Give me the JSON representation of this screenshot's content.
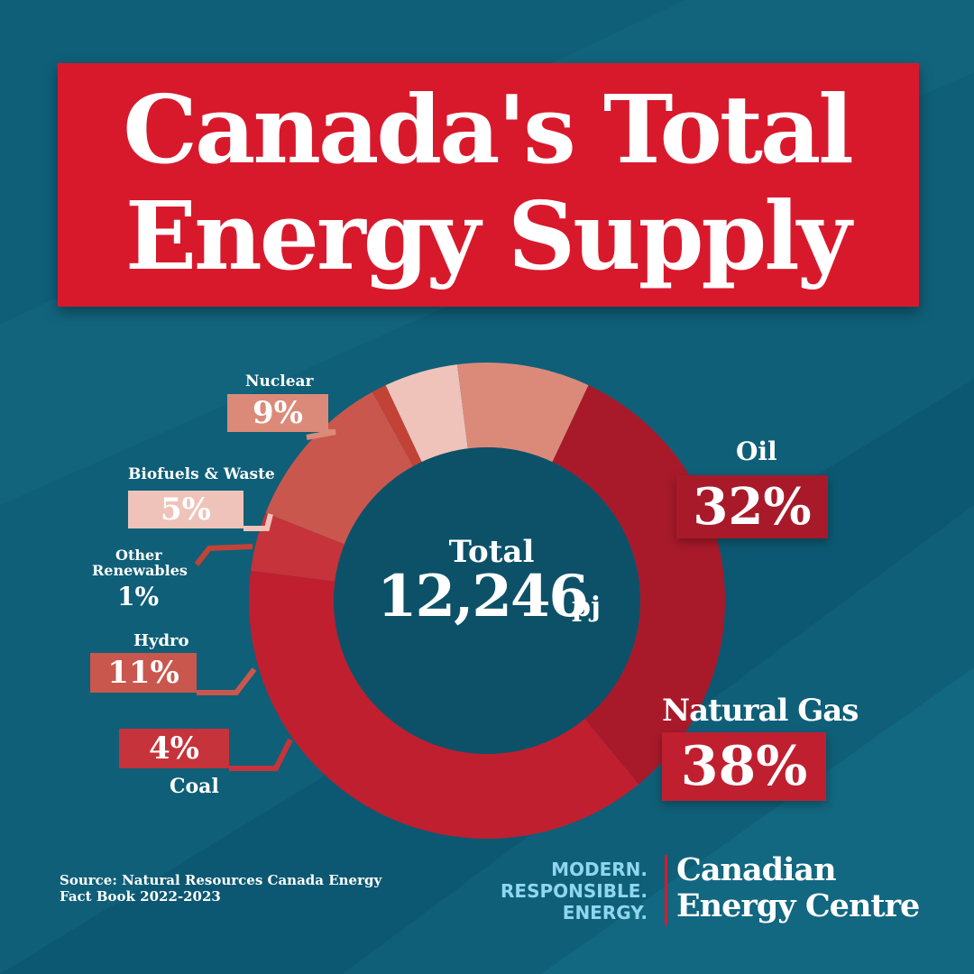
{
  "title": {
    "line1": "Canada's Total",
    "line2": "Energy Supply"
  },
  "center": {
    "label": "Total",
    "value": "12,246",
    "unit": "pj"
  },
  "source": "Source: Natural Resources Canada Energy Fact Book 2022-2023",
  "tagline": [
    "MODERN.",
    "RESPONSIBLE.",
    "ENERGY."
  ],
  "brand": [
    "Canadian",
    "Energy Centre"
  ],
  "colors": {
    "background": "#0f5f78",
    "title_bg": "#d8192c"
  },
  "chart_data": {
    "type": "pie",
    "donut": true,
    "categories": [
      "Oil",
      "Natural Gas",
      "Coal",
      "Hydro",
      "Other Renewables",
      "Biofuels & Waste",
      "Nuclear"
    ],
    "values": [
      32,
      38,
      4,
      11,
      1,
      5,
      9
    ],
    "labels": {
      "Oil": {
        "name": "Oil",
        "pct": "32%"
      },
      "Natural Gas": {
        "name": "Natural Gas",
        "pct": "38%"
      },
      "Coal": {
        "name": "Coal",
        "pct": "4%"
      },
      "Hydro": {
        "name": "Hydro",
        "pct": "11%"
      },
      "Other Renewables": {
        "name_line1": "Other",
        "name_line2": "Renewables",
        "pct": "1%"
      },
      "Biofuels & Waste": {
        "name": "Biofuels & Waste",
        "pct": "5%"
      },
      "Nuclear": {
        "name": "Nuclear",
        "pct": "9%"
      }
    },
    "colors": [
      "#a81a2a",
      "#c01f30",
      "#c6333a",
      "#c9574d",
      "#c24236",
      "#efc3b9",
      "#db8a7a"
    ]
  }
}
